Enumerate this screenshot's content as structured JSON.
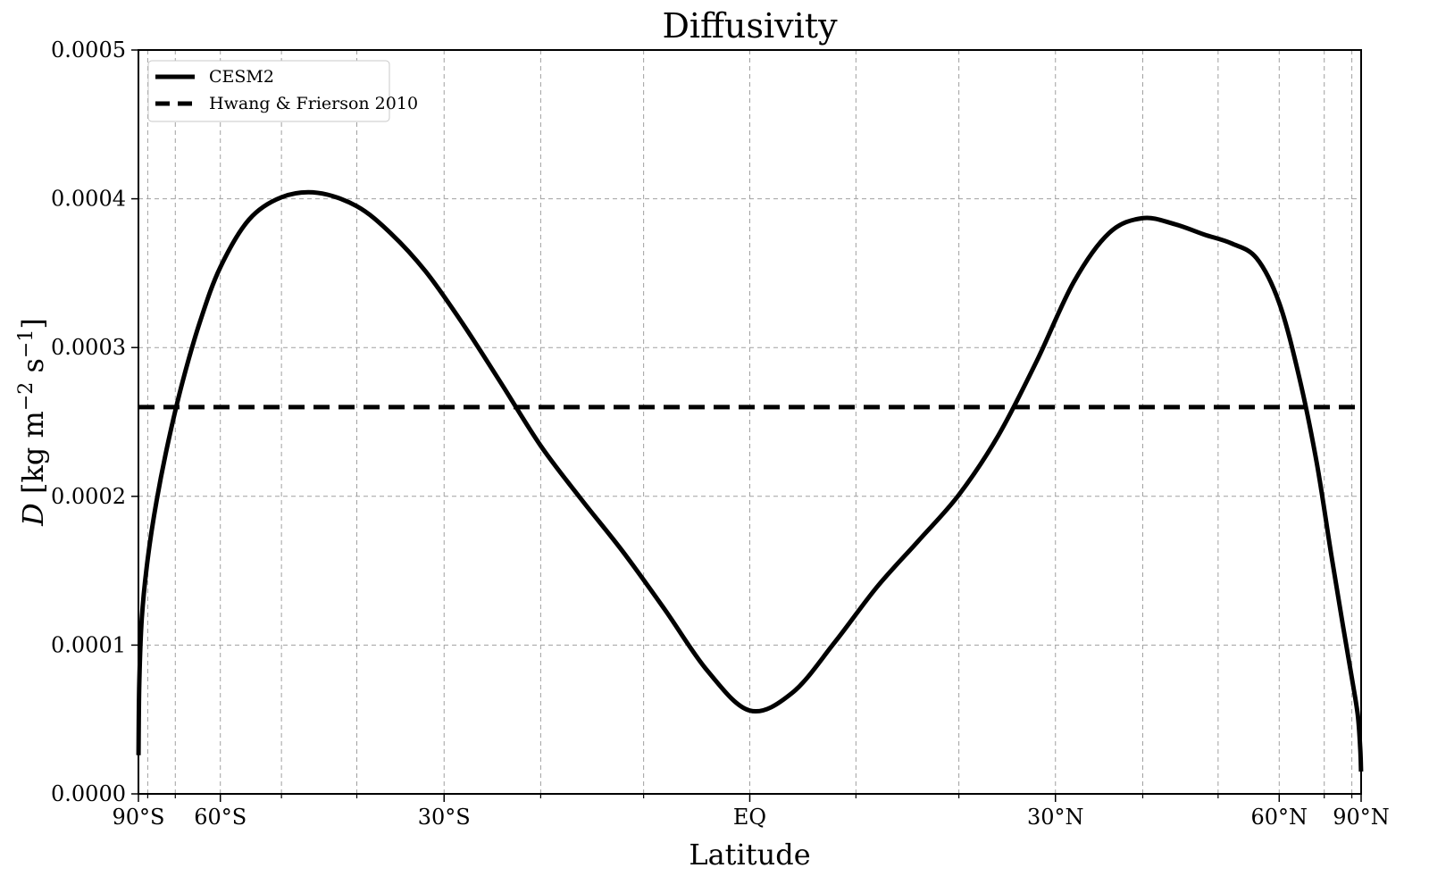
{
  "chart_data": {
    "type": "line",
    "title": "Diffusivity",
    "xlabel": "Latitude",
    "ylabel": "D [kg m⁻² s⁻¹]",
    "ylabel_parts": {
      "symbol": "D",
      "units_pre": " [kg m",
      "exp1": "−2",
      "units_mid": " s",
      "exp2": "−1",
      "units_post": "]"
    },
    "xaxis_scale": "sine of latitude",
    "xlim": [
      -90,
      90
    ],
    "ylim": [
      0,
      0.0005
    ],
    "yticks": [
      0,
      0.0001,
      0.0002,
      0.0003,
      0.0004,
      0.0005
    ],
    "ytick_labels": [
      "0.0000",
      "0.0001",
      "0.0002",
      "0.0003",
      "0.0004",
      "0.0005"
    ],
    "xticks_major": [
      -90,
      -60,
      -30,
      0,
      30,
      60,
      90
    ],
    "xtick_labels": [
      "90°S",
      "60°S",
      "30°S",
      "EQ",
      "30°N",
      "60°N",
      "90°N"
    ],
    "xticks_minor": [
      -80,
      -70,
      -50,
      -40,
      -20,
      -10,
      10,
      20,
      40,
      50,
      70,
      80
    ],
    "grid": true,
    "legend_position": "upper-left",
    "series": [
      {
        "name": "CESM2",
        "style": "solid",
        "color": "#000000",
        "x": [
          -89,
          -87,
          -84,
          -80,
          -76,
          -72,
          -68,
          -64,
          -60,
          -55,
          -50,
          -45,
          -40,
          -36,
          -32,
          -28,
          -24,
          -20,
          -16,
          -12,
          -8,
          -4,
          0,
          4,
          8,
          12,
          16,
          20,
          24,
          28,
          32,
          36,
          40,
          44,
          48,
          52,
          56,
          60,
          64,
          68,
          72,
          76,
          80,
          84,
          87,
          89
        ],
        "y": [
          2.6e-05,
          7.4e-05,
          0.000118,
          0.000158,
          0.000197,
          0.000237,
          0.000278,
          0.000318,
          0.000354,
          0.000386,
          0.000401,
          0.000404,
          0.000395,
          0.000377,
          0.000351,
          0.000316,
          0.000276,
          0.000234,
          0.000198,
          0.000163,
          0.000124,
          8.3e-05,
          5.6e-05,
          6.8e-05,
          0.000102,
          0.000139,
          0.00017,
          0.000201,
          0.000241,
          0.000291,
          0.000344,
          0.000377,
          0.000387,
          0.000383,
          0.000376,
          0.00037,
          0.00036,
          0.00033,
          0.00028,
          0.000223,
          0.000161,
          0.000113,
          7.8e-05,
          5.3e-05,
          3e-05,
          1.5e-05
        ]
      },
      {
        "name": "Hwang & Frierson 2010",
        "style": "dashed",
        "color": "#000000",
        "x": [
          -90,
          90
        ],
        "y": [
          0.00026,
          0.00026
        ]
      }
    ]
  }
}
